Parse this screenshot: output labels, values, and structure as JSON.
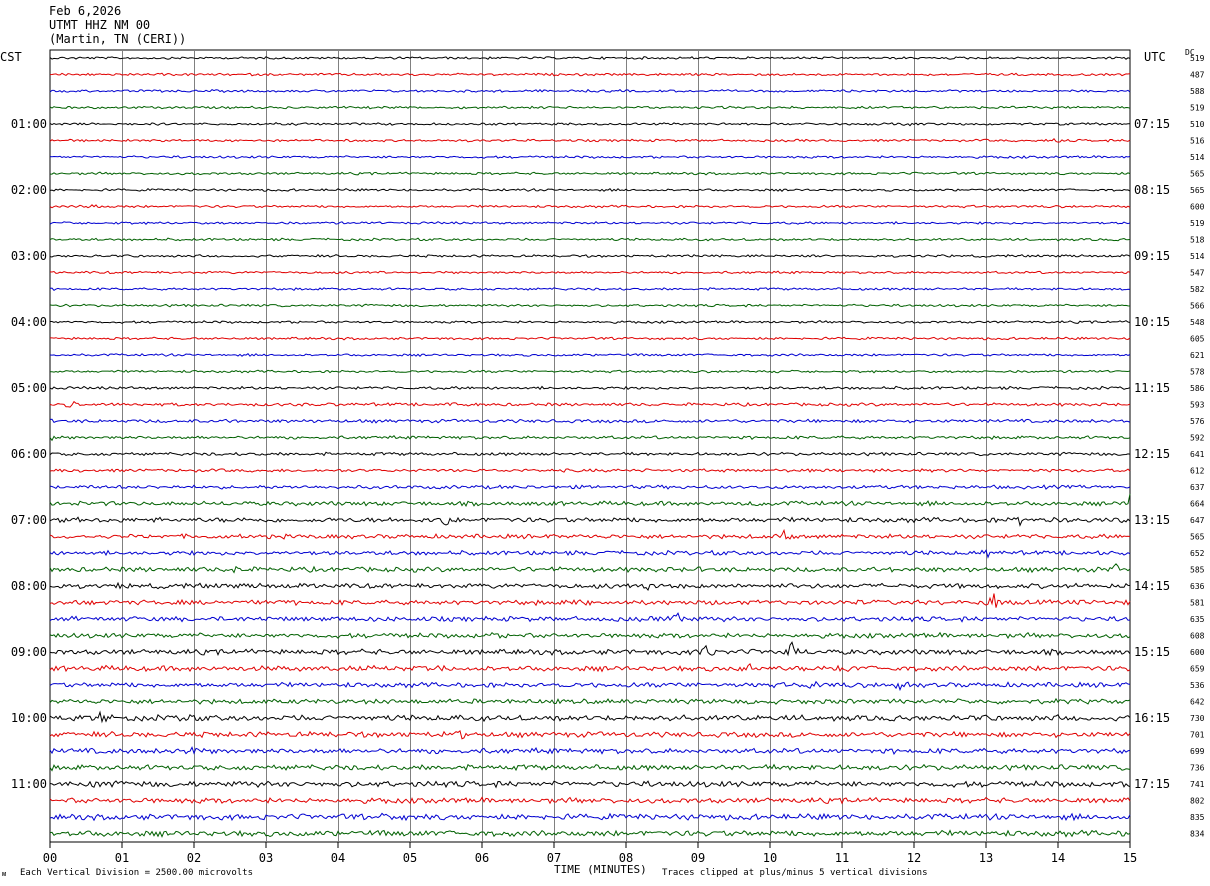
{
  "header": {
    "date": "Feb 6,2026",
    "station": "UTMT HHZ NM 00",
    "location": "(Martin, TN (CERI))"
  },
  "labels": {
    "left_tz": "CST",
    "right_tz": "UTC",
    "dc": "DC",
    "xlabel": "TIME (MINUTES)",
    "scale_note": "Each Vertical Division = 2500.00 microvolts",
    "clip_note": "Traces clipped at plus/minus 5 vertical divisions",
    "corner_mark": "ᴍ"
  },
  "colors": {
    "cycle": [
      "#000000",
      "#e00000",
      "#0000d0",
      "#006000"
    ],
    "grid": "#808080"
  },
  "chart_data": {
    "type": "line",
    "title": "UTMT HHZ NM 00",
    "xlabel": "TIME (MINUTES)",
    "xlim": [
      0,
      15
    ],
    "x_ticks": [
      "00",
      "01",
      "02",
      "03",
      "04",
      "05",
      "06",
      "07",
      "08",
      "09",
      "10",
      "11",
      "12",
      "13",
      "14",
      "15"
    ],
    "left_hour_labels": [
      "01:00",
      "02:00",
      "03:00",
      "04:00",
      "05:00",
      "06:00",
      "07:00",
      "08:00",
      "09:00",
      "10:00",
      "11:00"
    ],
    "right_hour_labels": [
      "07:15",
      "08:15",
      "09:15",
      "10:15",
      "11:15",
      "12:15",
      "13:15",
      "14:15",
      "15:15",
      "16:15",
      "17:15"
    ],
    "dc_offsets": [
      519,
      487,
      588,
      519,
      510,
      516,
      514,
      565,
      565,
      600,
      519,
      518,
      514,
      547,
      582,
      566,
      548,
      605,
      621,
      578,
      586,
      593,
      576,
      592,
      641,
      612,
      637,
      664,
      647,
      565,
      652,
      585,
      636,
      581,
      635,
      608,
      600,
      659,
      536,
      642,
      730,
      701,
      699,
      736,
      741,
      802,
      835,
      834
    ],
    "trace_amplitude": [
      1,
      1,
      1,
      1,
      1,
      1,
      1,
      1,
      1,
      1,
      1,
      1,
      1,
      1,
      1,
      1,
      1,
      1,
      1,
      1,
      1.2,
      1.3,
      1.4,
      1.3,
      1.3,
      1.3,
      1.5,
      1.8,
      2,
      1.8,
      1.8,
      2,
      2,
      2,
      2,
      2,
      2.2,
      2.2,
      2,
      2,
      2.4,
      2.2,
      2.2,
      2.2,
      2.4,
      2.2,
      2.4,
      2.4
    ],
    "events": [
      {
        "trace": 4,
        "minute": 11.9,
        "amp": 2
      },
      {
        "trace": 5,
        "minute": 14.0,
        "amp": 3
      },
      {
        "trace": 9,
        "minute": 0.6,
        "amp": 5
      },
      {
        "trace": 21,
        "minute": 0.3,
        "amp": 4
      },
      {
        "trace": 21,
        "minute": 5.6,
        "amp": 3
      },
      {
        "trace": 22,
        "minute": 2.6,
        "amp": 3
      },
      {
        "trace": 23,
        "minute": 0.0,
        "amp": 3
      },
      {
        "trace": 25,
        "minute": 0.3,
        "amp": 3
      },
      {
        "trace": 27,
        "minute": 9.8,
        "amp": 5
      },
      {
        "trace": 27,
        "minute": 15.0,
        "amp": 8
      },
      {
        "trace": 28,
        "minute": 5.5,
        "amp": 6
      },
      {
        "trace": 28,
        "minute": 13.5,
        "amp": 5
      },
      {
        "trace": 29,
        "minute": 10.2,
        "amp": 5
      },
      {
        "trace": 30,
        "minute": 13.0,
        "amp": 4
      },
      {
        "trace": 31,
        "minute": 2.6,
        "amp": 5
      },
      {
        "trace": 31,
        "minute": 14.8,
        "amp": 5
      },
      {
        "trace": 32,
        "minute": 0.9,
        "amp": 4
      },
      {
        "trace": 32,
        "minute": 8.3,
        "amp": 3
      },
      {
        "trace": 33,
        "minute": 3.2,
        "amp": 3
      },
      {
        "trace": 33,
        "minute": 7.3,
        "amp": 4
      },
      {
        "trace": 33,
        "minute": 13.1,
        "amp": 8
      },
      {
        "trace": 34,
        "minute": 8.7,
        "amp": 9
      },
      {
        "trace": 35,
        "minute": 6.1,
        "amp": 3
      },
      {
        "trace": 36,
        "minute": 9.1,
        "amp": 10
      },
      {
        "trace": 36,
        "minute": 10.3,
        "amp": 8
      },
      {
        "trace": 37,
        "minute": 5.5,
        "amp": 6
      },
      {
        "trace": 37,
        "minute": 9.7,
        "amp": 5
      },
      {
        "trace": 37,
        "minute": 11.0,
        "amp": 4
      },
      {
        "trace": 38,
        "minute": 10.6,
        "amp": 5
      },
      {
        "trace": 38,
        "minute": 11.8,
        "amp": 4
      },
      {
        "trace": 40,
        "minute": 0.7,
        "amp": 5
      },
      {
        "trace": 40,
        "minute": 1.9,
        "amp": 4
      },
      {
        "trace": 41,
        "minute": 5.7,
        "amp": 4
      },
      {
        "trace": 42,
        "minute": 2.0,
        "amp": 3
      },
      {
        "trace": 44,
        "minute": 0.6,
        "amp": 4
      },
      {
        "trace": 46,
        "minute": 4.6,
        "amp": 3
      }
    ]
  }
}
